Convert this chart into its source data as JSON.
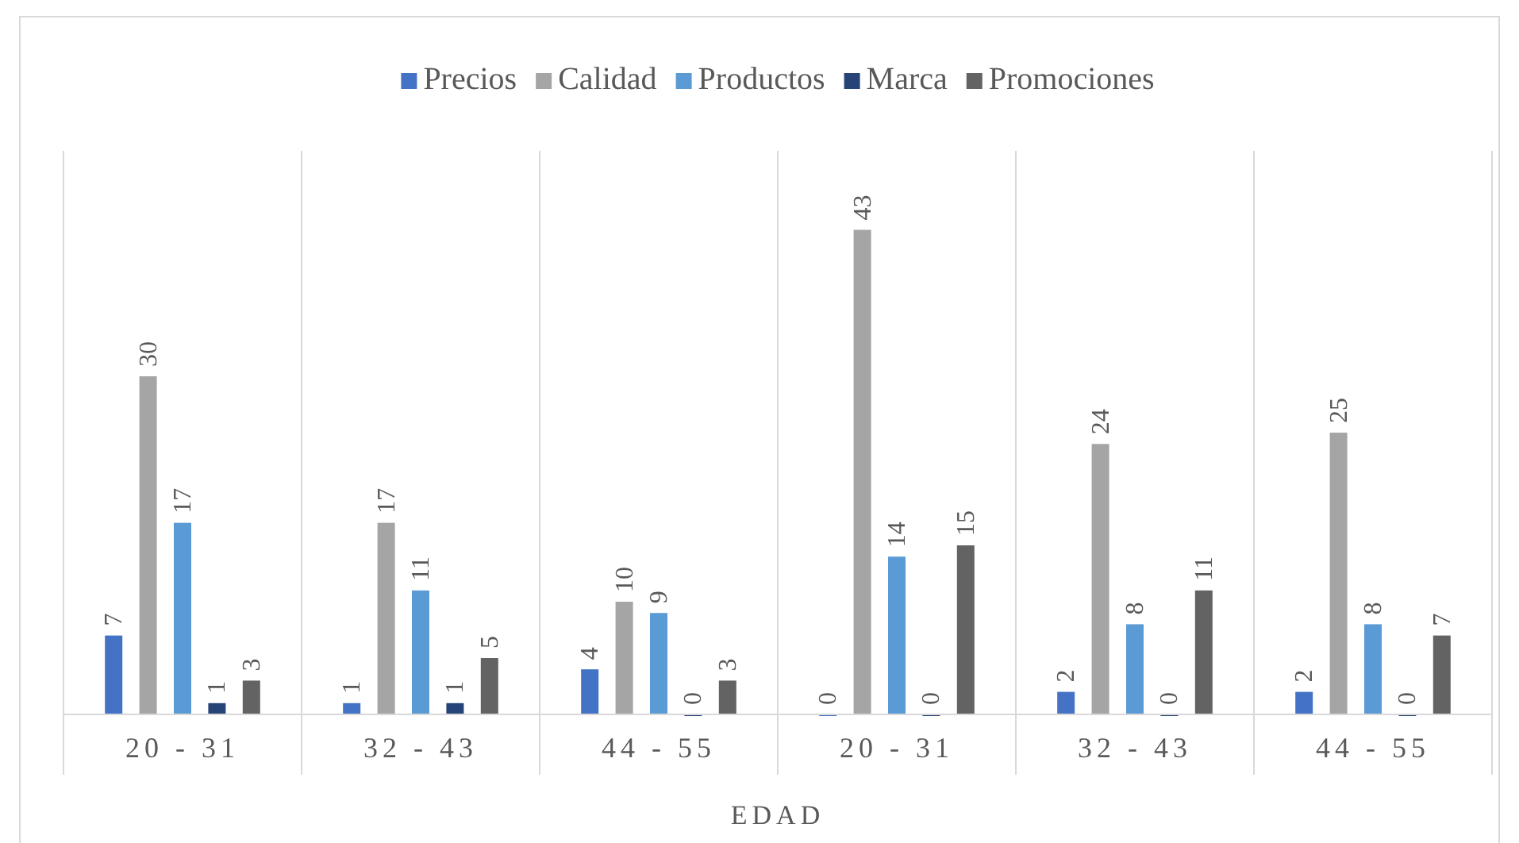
{
  "chart_data": {
    "type": "bar",
    "xlabel": "EDAD",
    "categories": [
      "20 - 31",
      "32 - 43",
      "44 - 55",
      "20 - 31",
      "32 - 43",
      "44 - 55"
    ],
    "series": [
      {
        "name": "Precios",
        "color": "#4472c4",
        "values": [
          7,
          1,
          4,
          0,
          2,
          2
        ]
      },
      {
        "name": "Calidad",
        "color": "#a5a5a5",
        "values": [
          30,
          17,
          10,
          43,
          24,
          25
        ]
      },
      {
        "name": "Productos",
        "color": "#5b9bd5",
        "values": [
          17,
          11,
          9,
          14,
          8,
          8
        ]
      },
      {
        "name": "Marca",
        "color": "#264478",
        "values": [
          1,
          1,
          0,
          0,
          0,
          0
        ]
      },
      {
        "name": "Promociones",
        "color": "#636363",
        "values": [
          3,
          5,
          3,
          15,
          11,
          7
        ]
      }
    ],
    "data_labels": true,
    "legend": "top",
    "grid": "x",
    "tick_labels": "x"
  }
}
